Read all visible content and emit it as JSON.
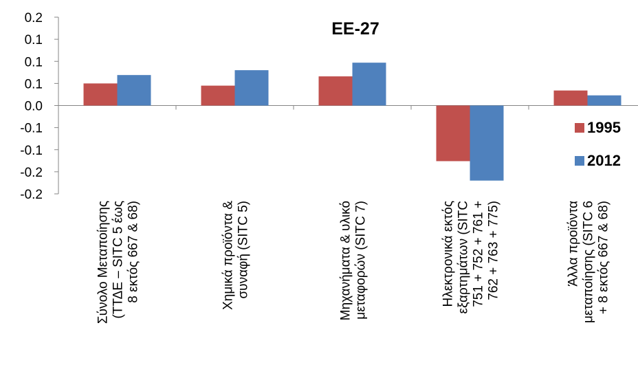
{
  "chart_data": {
    "type": "bar",
    "title": "EE-27",
    "categories": [
      [
        "Σύνολο Μεταποίησης",
        "(ΤΤΔΕ – SITC 5 έως",
        "8 εκτός 667 & 68)"
      ],
      [
        "Χημικά προϊόντα &",
        "συναφή (SITC 5)"
      ],
      [
        "Μηχανήματα & υλικό",
        "μεταφορών (SITC 7)"
      ],
      [
        "Ηλεκτρονικά εκτός",
        "εξαρτημάτων (SITC",
        "751 + 752 + 761 +",
        "762 + 763 + 775)"
      ],
      [
        "Άλλα προϊόντα",
        "μεταποίησης (SITC 6",
        "+ 8 εκτός 667 & 68)"
      ]
    ],
    "series": [
      {
        "name": "1995",
        "color": "#c0504d",
        "values": [
          0.05,
          0.045,
          0.066,
          -0.126,
          0.034
        ]
      },
      {
        "name": "2012",
        "color": "#4f81bd",
        "values": [
          0.069,
          0.08,
          0.097,
          -0.17,
          0.023
        ]
      }
    ],
    "yaxis": {
      "min": -0.2,
      "max": 0.2,
      "tick_values": [
        0.2,
        0.15,
        0.1,
        0.05,
        0.0,
        -0.05,
        -0.1,
        -0.15,
        -0.2
      ],
      "tick_labels": [
        "0.2",
        "0.1",
        "0.1",
        "0.1",
        "0.0",
        "-0.1",
        "-0.1",
        "-0.2",
        "-0.2"
      ]
    },
    "legend_position": "right",
    "grid": false
  }
}
